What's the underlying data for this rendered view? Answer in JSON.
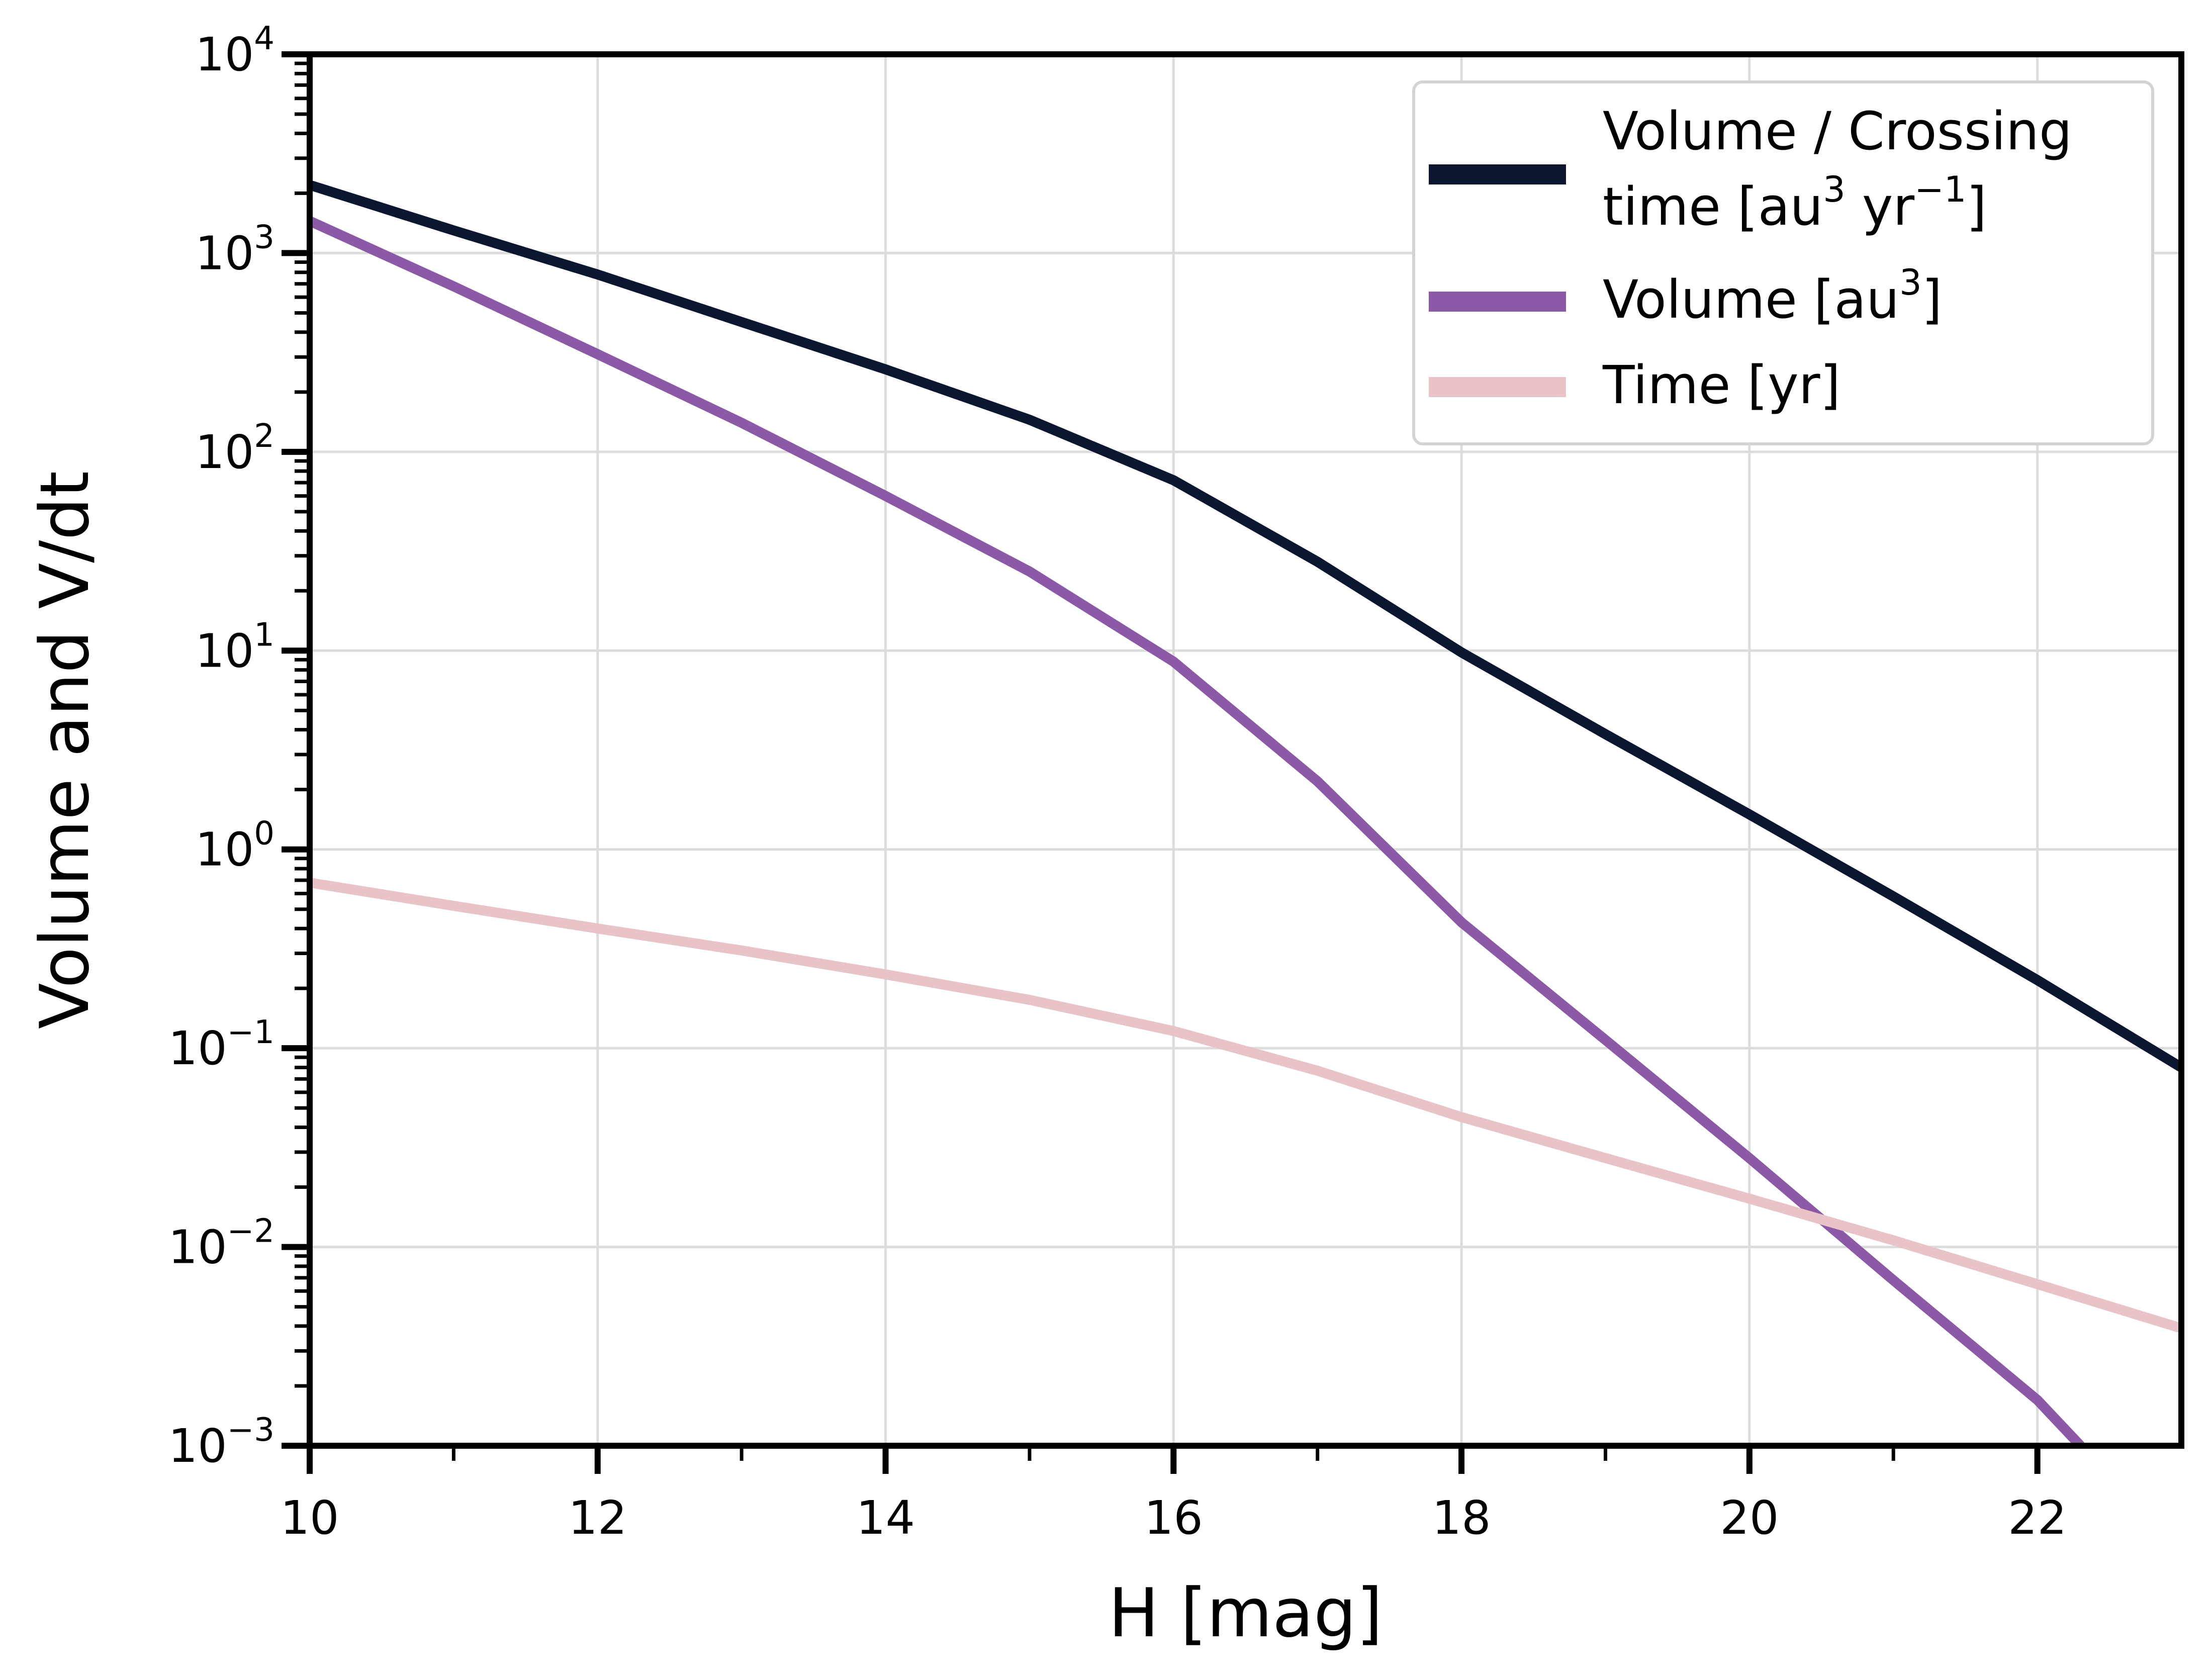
{
  "chart_data": {
    "type": "line",
    "xlabel": "H [mag]",
    "ylabel": "Volume and V/dt",
    "xlim": [
      10,
      23
    ],
    "ylim": [
      0.001,
      10000
    ],
    "yscale": "log",
    "grid": true,
    "legend_position": "top-right",
    "x_ticks": [
      10,
      12,
      14,
      16,
      18,
      20,
      22
    ],
    "x_tick_labels": [
      "10",
      "12",
      "14",
      "16",
      "18",
      "20",
      "22"
    ],
    "y_ticks": [
      {
        "value": 0.001,
        "base": "10",
        "exp": "−3"
      },
      {
        "value": 0.01,
        "base": "10",
        "exp": "−2"
      },
      {
        "value": 0.1,
        "base": "10",
        "exp": "−1"
      },
      {
        "value": 1,
        "base": "10",
        "exp": "0"
      },
      {
        "value": 10,
        "base": "10",
        "exp": "1"
      },
      {
        "value": 100,
        "base": "10",
        "exp": "2"
      },
      {
        "value": 1000,
        "base": "10",
        "exp": "3"
      },
      {
        "value": 10000,
        "base": "10",
        "exp": "4"
      }
    ],
    "series": [
      {
        "name": "Volume / Crossing time [au³ yr⁻¹]",
        "legend_lines": [
          [
            {
              "t": "Volume / Crossing",
              "sup": false
            }
          ],
          [
            {
              "t": "time [au",
              "sup": false
            },
            {
              "t": "3",
              "sup": true
            },
            {
              "t": " yr",
              "sup": false
            },
            {
              "t": "−1",
              "sup": true
            },
            {
              "t": "]",
              "sup": false
            }
          ]
        ],
        "color": "#0b1730",
        "x": [
          10,
          11,
          12,
          13,
          14,
          15,
          16,
          17,
          18,
          19,
          20,
          21,
          22,
          23
        ],
        "y": [
          2200,
          1300,
          780,
          450,
          260,
          145,
          72,
          28,
          9.8,
          3.8,
          1.5,
          0.58,
          0.22,
          0.08
        ]
      },
      {
        "name": "Volume [au³]",
        "legend_lines": [
          [
            {
              "t": "Volume [au",
              "sup": false
            },
            {
              "t": "3",
              "sup": true
            },
            {
              "t": "]",
              "sup": false
            }
          ]
        ],
        "color": "#8b59a6",
        "x": [
          10,
          11,
          12,
          13,
          14,
          15,
          16,
          17,
          18,
          19,
          20,
          21,
          22,
          22.3
        ],
        "y": [
          1450,
          680,
          310,
          140,
          60,
          25,
          8.8,
          2.2,
          0.43,
          0.11,
          0.028,
          0.0068,
          0.0017,
          0.001
        ]
      },
      {
        "name": "Time [yr]",
        "legend_lines": [
          [
            {
              "t": "Time [yr]",
              "sup": false
            }
          ]
        ],
        "color": "#e8c3c8",
        "x": [
          10,
          11,
          12,
          13,
          14,
          15,
          16,
          17,
          18,
          19,
          20,
          21,
          22,
          23
        ],
        "y": [
          0.68,
          0.52,
          0.4,
          0.31,
          0.235,
          0.175,
          0.122,
          0.077,
          0.045,
          0.028,
          0.0175,
          0.0108,
          0.0065,
          0.0039
        ]
      }
    ]
  }
}
